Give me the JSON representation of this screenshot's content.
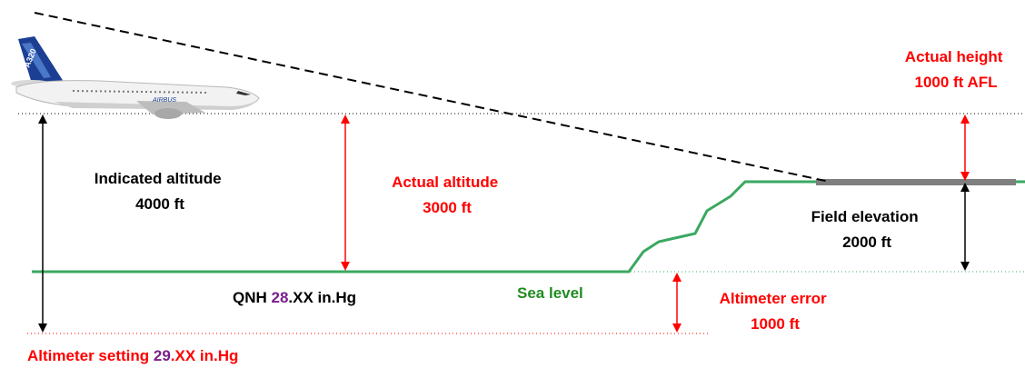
{
  "colors": {
    "ground": "#3aa860",
    "runway": "#7f7f7f",
    "red": "#ff0000",
    "black": "#000000",
    "green": "#228b22",
    "purple": "#7a1f8c"
  },
  "labels": {
    "indicated_altitude": {
      "line1": "Indicated altitude",
      "line2": "4000 ft"
    },
    "actual_altitude": {
      "line1": "Actual altitude",
      "line2": "3000 ft"
    },
    "actual_height": {
      "line1": "Actual height",
      "line2": "1000 ft AFL"
    },
    "field_elevation": {
      "line1": "Field elevation",
      "line2": "2000 ft"
    },
    "qnh": {
      "prefix": "QNH ",
      "value": "28",
      "suffix": ".XX in.Hg"
    },
    "sea_level": "Sea level",
    "altimeter_error": {
      "line1": "Altimeter error",
      "line2": "1000 ft"
    },
    "altimeter_setting": {
      "prefix": "Altimeter setting ",
      "value": "29",
      "suffix": ".XX in.Hg"
    }
  },
  "aircraft": {
    "tail_marking": "A320",
    "livery_text": "AIRBUS"
  }
}
